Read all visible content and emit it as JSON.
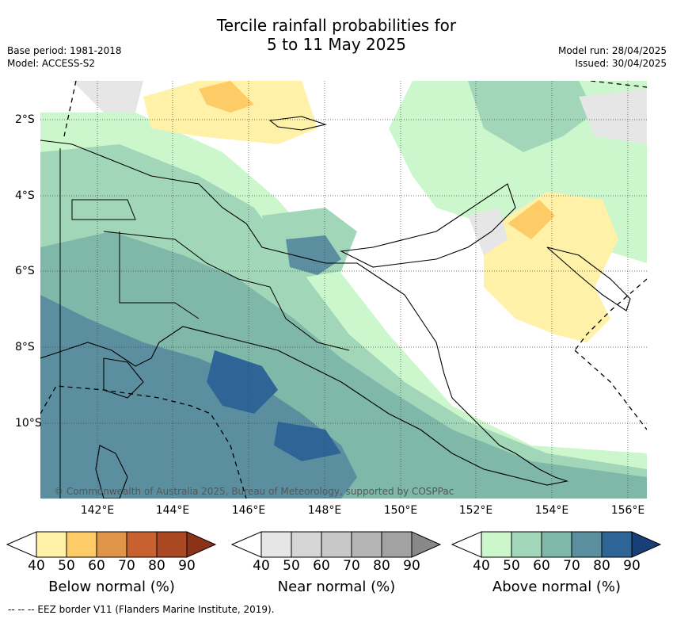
{
  "title_line1": "Tercile rainfall probabilities for",
  "title_line2": "5 to 11 May 2025",
  "base_period": "Base period: 1981-2018",
  "model": "Model: ACCESS-S2",
  "model_run": "Model run: 28/04/2025",
  "issued": "Issued: 30/04/2025",
  "copyright": "© Commonwealth of Australia 2025, Bureau of Meteorology, supported by COSPPac",
  "x_ticks": [
    "142°E",
    "144°E",
    "146°E",
    "148°E",
    "150°E",
    "152°E",
    "154°E",
    "156°E"
  ],
  "y_ticks": [
    "2°S",
    "4°S",
    "6°S",
    "8°S",
    "10°S"
  ],
  "colorbars": [
    {
      "label": "Below normal (%)",
      "ticks": [
        "40",
        "50",
        "60",
        "70",
        "80",
        "90"
      ],
      "colors": [
        "#fff2a8",
        "#fecc66",
        "#e09447",
        "#c8612f",
        "#ab4824",
        "#8b3219"
      ]
    },
    {
      "label": "Near normal (%)",
      "ticks": [
        "40",
        "50",
        "60",
        "70",
        "80",
        "90"
      ],
      "colors": [
        "#e6e6e6",
        "#d6d6d6",
        "#c8c8c8",
        "#b5b5b5",
        "#a2a2a2",
        "#888888"
      ]
    },
    {
      "label": "Above normal (%)",
      "ticks": [
        "40",
        "50",
        "60",
        "70",
        "80",
        "90"
      ],
      "colors": [
        "#ccf7cc",
        "#a2d6b8",
        "#7fb7a8",
        "#5b8fa0",
        "#2f6596",
        "#183f78"
      ]
    }
  ],
  "footer": "--  --  -- EEZ border V11 (Flanders Marine Institute, 2019)."
}
